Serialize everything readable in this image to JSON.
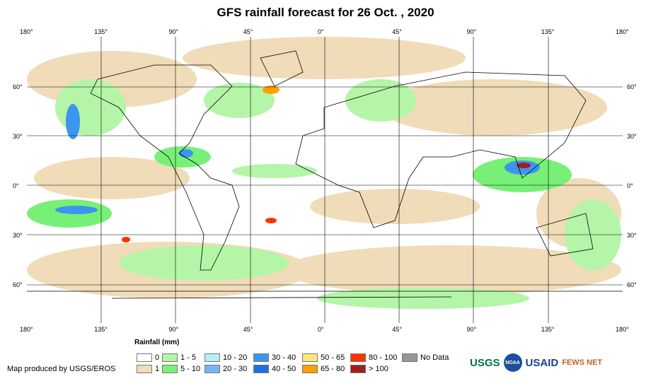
{
  "title": "GFS rainfall forecast for 26 Oct. , 2020",
  "lon_ticks": [
    "180°",
    "135°",
    "90°",
    "45°",
    "0°",
    "45°",
    "90°",
    "135°",
    "180°"
  ],
  "lat_ticks": [
    "60°",
    "30°",
    "0°",
    "30°",
    "60°"
  ],
  "legend": {
    "title": "Rainfall (mm)",
    "items": [
      {
        "label": "0",
        "color": "#ffffff"
      },
      {
        "label": "1",
        "color": "#f0dcb8"
      },
      {
        "label": "1 - 5",
        "color": "#b4f5a8"
      },
      {
        "label": "5 - 10",
        "color": "#78f078"
      },
      {
        "label": "10 - 20",
        "color": "#b4f0f8"
      },
      {
        "label": "20 - 30",
        "color": "#78b4f8"
      },
      {
        "label": "30 - 40",
        "color": "#3c96f0"
      },
      {
        "label": "40 - 50",
        "color": "#1e6ee6"
      },
      {
        "label": "50 - 65",
        "color": "#ffe678"
      },
      {
        "label": "65 - 80",
        "color": "#ffa000"
      },
      {
        "label": "80 - 100",
        "color": "#ff3200"
      },
      {
        "label": "> 100",
        "color": "#a01e1e"
      },
      {
        "label": "No Data",
        "color": "#969696"
      }
    ]
  },
  "credit": "Map produced by USGS/EROS",
  "logos": [
    "USGS",
    "NOAA",
    "USAID",
    "FEWS NET"
  ]
}
